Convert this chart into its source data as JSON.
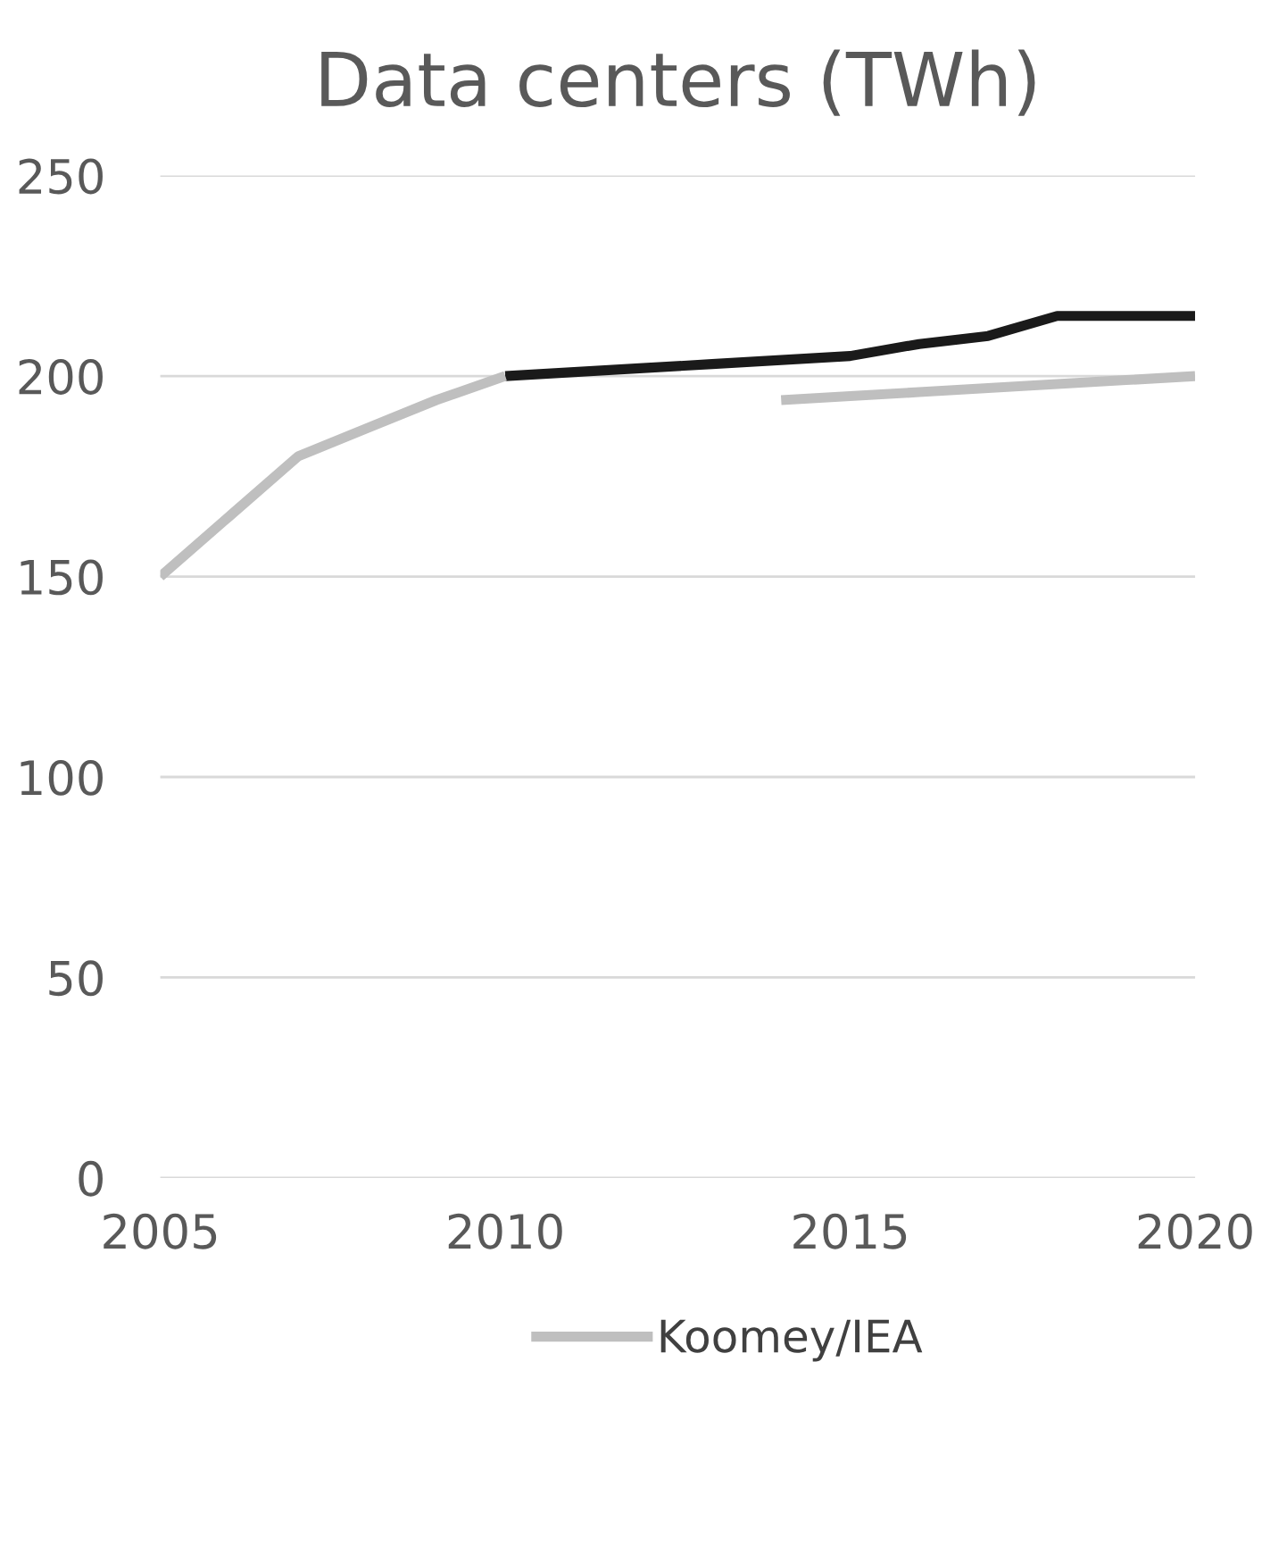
{
  "chart_data": {
    "type": "line",
    "title": "Data centers (TWh)",
    "x": [
      2005,
      2006,
      2007,
      2008,
      2009,
      2010,
      2011,
      2012,
      2013,
      2014,
      2015,
      2016,
      2017,
      2018,
      2019,
      2020
    ],
    "series": [
      {
        "color": "#1a1a1a",
        "values": [
          null,
          null,
          null,
          null,
          null,
          200,
          201,
          202,
          203,
          204,
          205,
          208,
          210,
          215,
          215,
          215
        ]
      },
      {
        "name": "Koomey/IEA",
        "color": "#bfbfbf",
        "values": [
          150,
          165,
          180,
          187,
          194,
          200,
          null,
          null,
          null,
          194,
          195,
          196,
          197,
          198,
          199,
          200
        ]
      }
    ],
    "xlim": [
      2005,
      2020
    ],
    "xticks": [
      2005,
      2010,
      2015,
      2020
    ],
    "ylim": [
      0,
      250
    ],
    "yticks": [
      0,
      50,
      100,
      150,
      200,
      250
    ],
    "grid": "y",
    "legend": "bottom",
    "marker": "none",
    "line_style": "solid"
  }
}
